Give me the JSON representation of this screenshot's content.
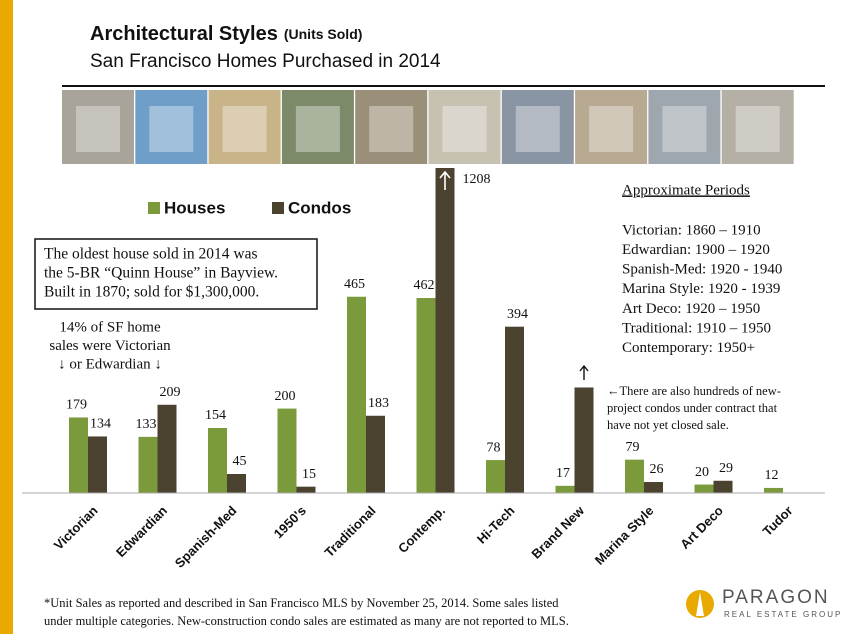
{
  "title": "Architectural Styles",
  "title_note": "(Units Sold)",
  "subtitle": "San Francisco Homes Purchased in 2014",
  "chart_data": {
    "type": "bar",
    "categories": [
      "Victorian",
      "Edwardian",
      "Spanish-Med",
      "1950's",
      "Traditional",
      "Contemp.",
      "Hi-Tech",
      "Brand New",
      "Marina Style",
      "Art Deco",
      "Tudor"
    ],
    "series": [
      {
        "name": "Houses",
        "color": "#7b9a3c",
        "values": [
          179,
          133,
          154,
          200,
          465,
          462,
          78,
          17,
          79,
          20,
          12
        ]
      },
      {
        "name": "Condos",
        "color": "#4b4330",
        "values": [
          134,
          209,
          45,
          15,
          183,
          1208,
          394,
          250,
          26,
          29,
          null
        ],
        "value_labels": [
          "134",
          "209",
          "45",
          "15",
          "183",
          "1208",
          "394",
          null,
          "26",
          "29",
          null
        ]
      }
    ],
    "ylim": [
      0,
      770
    ]
  },
  "annotations": {
    "oldest_house": [
      "The oldest house sold in 2014 was",
      "the 5-BR “Quinn House” in Bayview.",
      "Built in 1870; sold for $1,300,000."
    ],
    "share": [
      "14% of SF home",
      "sales were Victorian",
      "↓ or Edwardian ↓"
    ],
    "new_project": [
      "←There are also hundreds of new-",
      "project condos under contract that",
      "have not yet closed sale."
    ],
    "periods_title": "Approximate Periods",
    "periods": [
      "Victorian: 1860 – 1910",
      "Edwardian: 1900 – 1920",
      "Spanish-Med: 1920 - 1940",
      "Marina Style: 1920 - 1939",
      "Art Deco: 1920 – 1950",
      "Traditional: 1910 – 1950",
      "Contemporary: 1950+"
    ]
  },
  "footnote": [
    "*Unit Sales as reported and described in San Francisco MLS by November 25, 2014. Some sales listed",
    "under multiple categories. New-construction condo sales are estimated as many are not reported to MLS."
  ],
  "logo": {
    "name": "PARAGON",
    "tagline": "REAL ESTATE GROUP"
  }
}
